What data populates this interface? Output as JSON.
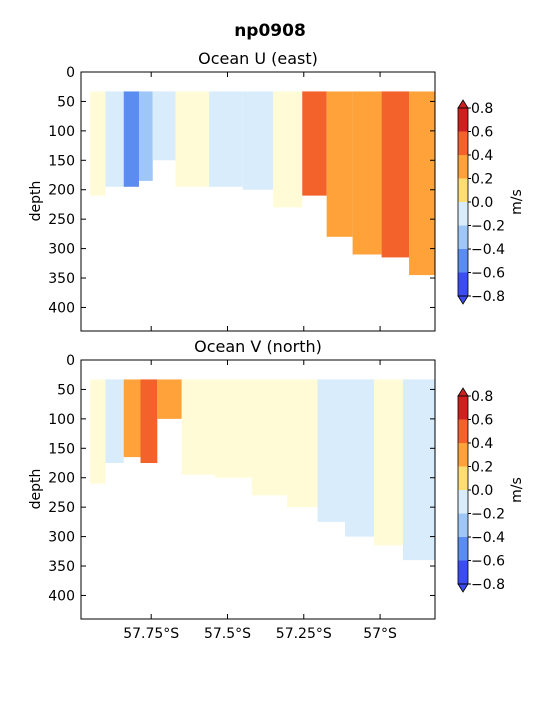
{
  "figure": {
    "title": "np0908",
    "xticks": [
      "57.75°S",
      "57.5°S",
      "57.25°S",
      "57°S"
    ],
    "colors": {
      "n08": "#3a4cf2",
      "n06": "#5b8cf0",
      "n04": "#9ec7f7",
      "n02": "#d8ecfb",
      "p00": "#fffbd6",
      "p02": "#ffdd75",
      "p04": "#ffa23a",
      "p06": "#f2622a",
      "p08": "#d01f1f"
    }
  },
  "chart_data": [
    {
      "type": "heatmap",
      "title": "Ocean U (east)",
      "ylabel": "depth",
      "ylim": [
        440,
        0
      ],
      "yticks": [
        "0",
        "50",
        "100",
        "150",
        "200",
        "250",
        "300",
        "350",
        "400"
      ],
      "colorbar": {
        "label": "m/s",
        "ticks": [
          "0.8",
          "0.6",
          "0.4",
          "0.2",
          "0.0",
          "−0.2",
          "−0.4",
          "−0.6",
          "−0.8"
        ]
      },
      "cols": [
        {
          "lat": -57.93,
          "v": 0.05,
          "bottom": 210
        },
        {
          "lat": -57.87,
          "v": -0.15,
          "bottom": 195
        },
        {
          "lat": -57.81,
          "v": -0.55,
          "bottom": 195
        },
        {
          "lat": -57.77,
          "v": -0.35,
          "bottom": 185
        },
        {
          "lat": -57.72,
          "v": -0.05,
          "bottom": 150
        },
        {
          "lat": -57.62,
          "v": 0.05,
          "bottom": 195
        },
        {
          "lat": -57.5,
          "v": -0.05,
          "bottom": 195
        },
        {
          "lat": -57.4,
          "v": -0.05,
          "bottom": 200
        },
        {
          "lat": -57.3,
          "v": 0.05,
          "bottom": 230
        },
        {
          "lat": -57.21,
          "v": 0.45,
          "bottom": 210
        },
        {
          "lat": -57.14,
          "v": 0.3,
          "bottom": 280
        },
        {
          "lat": -57.04,
          "v": 0.3,
          "bottom": 310
        },
        {
          "lat": -56.95,
          "v": 0.45,
          "bottom": 315
        },
        {
          "lat": -56.86,
          "v": 0.3,
          "bottom": 345
        }
      ]
    },
    {
      "type": "heatmap",
      "title": "Ocean V (north)",
      "ylabel": "depth",
      "ylim": [
        440,
        0
      ],
      "yticks": [
        "0",
        "50",
        "100",
        "150",
        "200",
        "250",
        "300",
        "350",
        "400"
      ],
      "colorbar": {
        "label": "m/s",
        "ticks": [
          "0.8",
          "0.6",
          "0.4",
          "0.2",
          "0.0",
          "−0.2",
          "−0.4",
          "−0.6",
          "−0.8"
        ]
      },
      "cols": [
        {
          "lat": -57.93,
          "v": 0.05,
          "bottom": 210
        },
        {
          "lat": -57.87,
          "v": -0.05,
          "bottom": 175
        },
        {
          "lat": -57.81,
          "v": 0.25,
          "bottom": 165
        },
        {
          "lat": -57.76,
          "v": 0.45,
          "bottom": 175
        },
        {
          "lat": -57.7,
          "v": 0.25,
          "bottom": 100
        },
        {
          "lat": -57.6,
          "v": 0.05,
          "bottom": 195
        },
        {
          "lat": -57.48,
          "v": 0.05,
          "bottom": 200
        },
        {
          "lat": -57.36,
          "v": 0.05,
          "bottom": 230
        },
        {
          "lat": -57.25,
          "v": 0.05,
          "bottom": 250
        },
        {
          "lat": -57.16,
          "v": -0.05,
          "bottom": 275
        },
        {
          "lat": -57.07,
          "v": -0.05,
          "bottom": 300
        },
        {
          "lat": -56.97,
          "v": 0.05,
          "bottom": 315
        },
        {
          "lat": -56.88,
          "v": -0.05,
          "bottom": 340
        }
      ]
    }
  ]
}
